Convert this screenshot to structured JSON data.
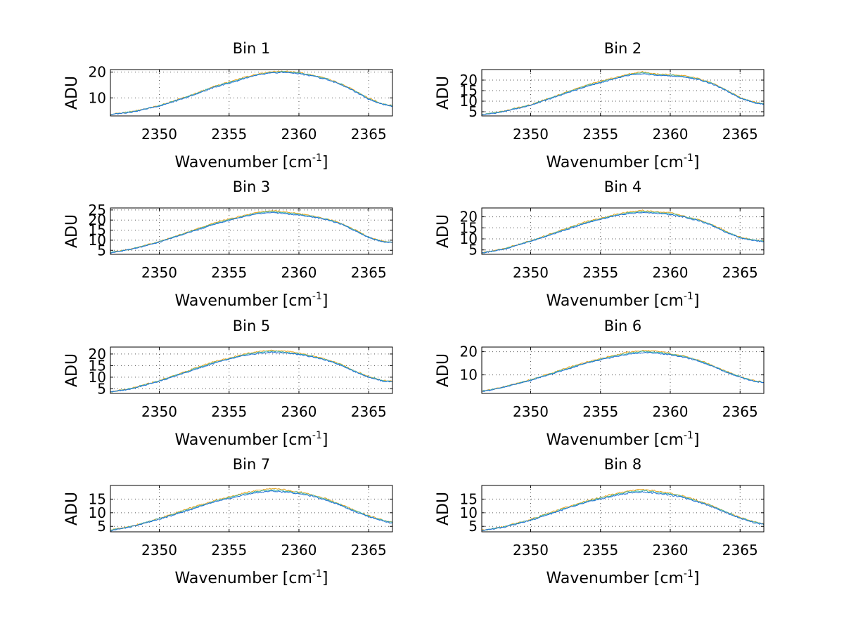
{
  "chart_data": [
    {
      "type": "line",
      "title": "Bin 1",
      "xlabel_main": "Wavenumber [cm",
      "xlabel_sup": "-1",
      "xlabel_close": "]",
      "ylabel": "ADU",
      "xlim": [
        2346.5,
        2366.7
      ],
      "ylim": [
        3,
        21
      ],
      "xticks": [
        2350,
        2355,
        2360,
        2365
      ],
      "yticks": [
        10,
        20
      ],
      "x": [
        2346.5,
        2348,
        2350,
        2352,
        2354,
        2356,
        2357,
        2358,
        2359,
        2360,
        2361,
        2362,
        2363,
        2364,
        2365,
        2366,
        2366.7
      ],
      "series": [
        {
          "name": "blue",
          "values": [
            3.5,
            4.5,
            6.8,
            10.2,
            14.2,
            17.3,
            18.8,
            19.6,
            19.9,
            19.4,
            18.5,
            17.2,
            15.2,
            12.5,
            9.5,
            7.5,
            6.8
          ]
        },
        {
          "name": "orange",
          "values": [
            3.6,
            4.6,
            7.0,
            10.5,
            14.6,
            17.8,
            19.3,
            20.2,
            20.4,
            19.8,
            18.8,
            17.5,
            15.5,
            12.8,
            9.8,
            7.7,
            7.0
          ]
        }
      ]
    },
    {
      "type": "line",
      "title": "Bin 2",
      "xlabel_main": "Wavenumber [cm",
      "xlabel_sup": "-1",
      "xlabel_close": "]",
      "ylabel": "ADU",
      "xlim": [
        2346.5,
        2366.7
      ],
      "ylim": [
        3,
        25
      ],
      "xticks": [
        2350,
        2355,
        2360,
        2365
      ],
      "yticks": [
        5,
        10,
        15,
        20
      ],
      "x": [
        2346.5,
        2348,
        2350,
        2352,
        2354,
        2356,
        2357,
        2358,
        2359,
        2360,
        2361,
        2362,
        2363,
        2364,
        2365,
        2366,
        2366.7
      ],
      "series": [
        {
          "name": "blue",
          "values": [
            3.5,
            5.0,
            8.0,
            12.5,
            17.0,
            20.5,
            22.2,
            23.0,
            22.3,
            22.0,
            21.4,
            20.3,
            18.2,
            15.0,
            11.5,
            9.3,
            8.5
          ]
        },
        {
          "name": "orange",
          "values": [
            3.6,
            5.2,
            8.3,
            13.0,
            17.6,
            21.2,
            22.9,
            24.0,
            22.8,
            22.6,
            22.0,
            20.8,
            18.6,
            15.4,
            11.8,
            9.6,
            8.8
          ]
        }
      ]
    },
    {
      "type": "line",
      "title": "Bin 3",
      "xlabel_main": "Wavenumber [cm",
      "xlabel_sup": "-1",
      "xlabel_close": "]",
      "ylabel": "ADU",
      "xlim": [
        2346.5,
        2366.7
      ],
      "ylim": [
        3,
        26
      ],
      "xticks": [
        2350,
        2355,
        2360,
        2365
      ],
      "yticks": [
        5,
        10,
        15,
        20,
        25
      ],
      "x": [
        2346.5,
        2348,
        2350,
        2352,
        2354,
        2356,
        2357,
        2358,
        2359,
        2360,
        2361,
        2362,
        2363,
        2364,
        2365,
        2366,
        2366.7
      ],
      "series": [
        {
          "name": "blue",
          "values": [
            3.8,
            5.5,
            9.0,
            13.5,
            18.0,
            21.5,
            23.0,
            23.8,
            23.2,
            22.5,
            21.5,
            20.2,
            18.0,
            14.8,
            11.3,
            9.2,
            8.8
          ]
        },
        {
          "name": "orange",
          "values": [
            3.9,
            5.7,
            9.3,
            14.0,
            18.7,
            22.3,
            23.8,
            24.7,
            24.0,
            23.2,
            22.0,
            20.6,
            18.4,
            15.2,
            11.6,
            9.5,
            9.0
          ]
        }
      ]
    },
    {
      "type": "line",
      "title": "Bin 4",
      "xlabel_main": "Wavenumber [cm",
      "xlabel_sup": "-1",
      "xlabel_close": "]",
      "ylabel": "ADU",
      "xlim": [
        2346.5,
        2366.7
      ],
      "ylim": [
        3,
        24
      ],
      "xticks": [
        2350,
        2355,
        2360,
        2365
      ],
      "yticks": [
        5,
        10,
        15,
        20
      ],
      "x": [
        2346.5,
        2348,
        2350,
        2352,
        2354,
        2356,
        2357,
        2358,
        2359,
        2360,
        2361,
        2362,
        2363,
        2364,
        2365,
        2366,
        2366.7
      ],
      "series": [
        {
          "name": "blue",
          "values": [
            3.6,
            5.2,
            8.8,
            13.0,
            17.2,
            20.3,
            21.4,
            21.9,
            21.6,
            21.0,
            19.8,
            18.3,
            16.0,
            13.0,
            10.5,
            9.2,
            8.8
          ]
        },
        {
          "name": "orange",
          "values": [
            3.7,
            5.4,
            9.1,
            13.5,
            17.8,
            21.0,
            22.2,
            22.8,
            22.3,
            21.8,
            20.3,
            18.7,
            16.4,
            13.4,
            10.8,
            9.5,
            9.0
          ]
        }
      ]
    },
    {
      "type": "line",
      "title": "Bin 5",
      "xlabel_main": "Wavenumber [cm",
      "xlabel_sup": "-1",
      "xlabel_close": "]",
      "ylabel": "ADU",
      "xlim": [
        2346.5,
        2366.7
      ],
      "ylim": [
        3,
        23
      ],
      "xticks": [
        2350,
        2355,
        2360,
        2365
      ],
      "yticks": [
        5,
        10,
        15,
        20
      ],
      "x": [
        2346.5,
        2348,
        2350,
        2352,
        2354,
        2356,
        2357,
        2358,
        2359,
        2360,
        2361,
        2362,
        2363,
        2364,
        2365,
        2366,
        2366.7
      ],
      "series": [
        {
          "name": "blue",
          "values": [
            3.6,
            5.0,
            8.2,
            12.2,
            16.2,
            19.2,
            20.2,
            20.8,
            20.5,
            19.8,
            18.7,
            17.2,
            15.2,
            12.4,
            10.0,
            8.3,
            8.0
          ]
        },
        {
          "name": "orange",
          "values": [
            3.7,
            5.2,
            8.5,
            12.7,
            16.8,
            19.9,
            21.0,
            21.6,
            21.2,
            20.4,
            19.2,
            17.6,
            15.6,
            12.8,
            10.3,
            8.6,
            8.2
          ]
        }
      ]
    },
    {
      "type": "line",
      "title": "Bin 6",
      "xlabel_main": "Wavenumber [cm",
      "xlabel_sup": "-1",
      "xlabel_close": "]",
      "ylabel": "ADU",
      "xlim": [
        2346.5,
        2366.7
      ],
      "ylim": [
        2,
        22
      ],
      "xticks": [
        2350,
        2355,
        2360,
        2365
      ],
      "yticks": [
        10,
        20
      ],
      "x": [
        2346.5,
        2348,
        2350,
        2352,
        2354,
        2356,
        2357,
        2358,
        2359,
        2360,
        2361,
        2362,
        2363,
        2364,
        2365,
        2366,
        2366.7
      ],
      "series": [
        {
          "name": "blue",
          "values": [
            2.8,
            4.5,
            7.6,
            11.3,
            15.0,
            17.8,
            18.9,
            19.6,
            19.4,
            18.7,
            17.6,
            16.0,
            13.8,
            11.2,
            9.0,
            7.2,
            6.6
          ]
        },
        {
          "name": "orange",
          "values": [
            2.9,
            4.7,
            7.9,
            11.8,
            15.6,
            18.5,
            19.7,
            20.5,
            20.2,
            19.3,
            18.1,
            16.4,
            14.2,
            11.6,
            9.3,
            7.5,
            6.8
          ]
        }
      ]
    },
    {
      "type": "line",
      "title": "Bin 7",
      "xlabel_main": "Wavenumber [cm",
      "xlabel_sup": "-1",
      "xlabel_close": "]",
      "ylabel": "ADU",
      "xlim": [
        2346.5,
        2366.7
      ],
      "ylim": [
        3,
        20
      ],
      "xticks": [
        2350,
        2355,
        2360,
        2365
      ],
      "yticks": [
        5,
        10,
        15
      ],
      "x": [
        2346.5,
        2348,
        2350,
        2352,
        2354,
        2356,
        2357,
        2358,
        2359,
        2360,
        2361,
        2362,
        2363,
        2364,
        2365,
        2366,
        2366.7
      ],
      "series": [
        {
          "name": "blue",
          "values": [
            3.5,
            4.8,
            7.6,
            10.8,
            14.0,
            16.4,
            17.4,
            17.9,
            17.6,
            17.0,
            16.0,
            14.6,
            12.7,
            10.5,
            8.6,
            7.0,
            6.2
          ]
        },
        {
          "name": "orange",
          "values": [
            3.6,
            5.0,
            7.9,
            11.3,
            14.6,
            17.1,
            18.2,
            18.8,
            18.4,
            17.6,
            16.5,
            15.0,
            13.1,
            10.9,
            8.9,
            7.3,
            6.4
          ]
        }
      ]
    },
    {
      "type": "line",
      "title": "Bin 8",
      "xlabel_main": "Wavenumber [cm",
      "xlabel_sup": "-1",
      "xlabel_close": "]",
      "ylabel": "ADU",
      "xlim": [
        2346.5,
        2366.7
      ],
      "ylim": [
        3,
        20
      ],
      "xticks": [
        2350,
        2355,
        2360,
        2365
      ],
      "yticks": [
        5,
        10,
        15
      ],
      "x": [
        2346.5,
        2348,
        2350,
        2352,
        2354,
        2356,
        2357,
        2358,
        2359,
        2360,
        2361,
        2362,
        2363,
        2364,
        2365,
        2366,
        2366.7
      ],
      "series": [
        {
          "name": "blue",
          "values": [
            3.4,
            4.6,
            7.2,
            10.6,
            13.8,
            16.2,
            17.2,
            17.6,
            17.2,
            16.5,
            15.5,
            14.0,
            12.2,
            10.0,
            8.0,
            6.4,
            5.6
          ]
        },
        {
          "name": "orange",
          "values": [
            3.5,
            4.8,
            7.5,
            11.1,
            14.4,
            16.9,
            18.0,
            18.5,
            18.0,
            17.1,
            16.0,
            14.4,
            12.6,
            10.4,
            8.3,
            6.7,
            5.8
          ]
        }
      ]
    }
  ],
  "colors": {
    "blue": "#1f6fd6",
    "orange": "#e6a21a",
    "teal": "#3fb8a8"
  }
}
